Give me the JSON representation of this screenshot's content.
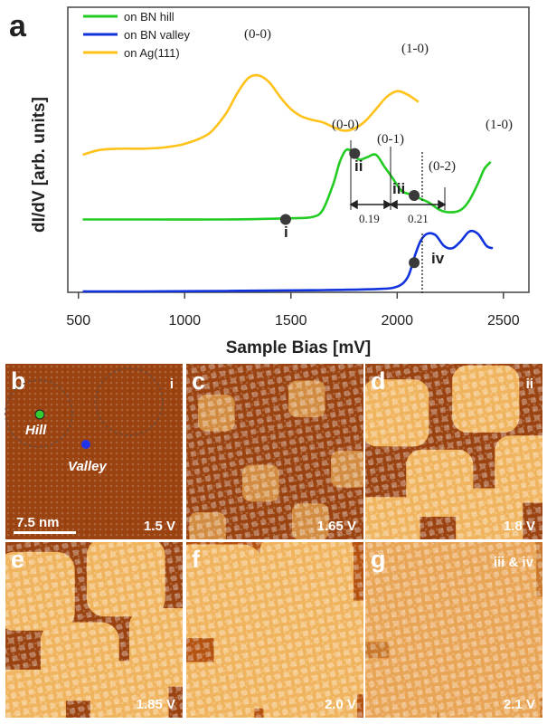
{
  "panel_a": {
    "letter": "a",
    "legend": [
      {
        "label": "on BN hill",
        "color": "#22cc22"
      },
      {
        "label": "on BN valley",
        "color": "#1133dd"
      },
      {
        "label": "on Ag(111)",
        "color": "#ffc21a"
      }
    ],
    "peak_labels": {
      "ag_00": "(0-0)",
      "ag_10": "(1-0)",
      "hill_00": "(0-0)",
      "hill_01": "(0-1)",
      "hill_02": "(0-2)",
      "hill_10": "(1-0)"
    },
    "point_labels": {
      "i": "i",
      "ii": "ii",
      "iii": "iii",
      "iv": "iv"
    },
    "spacings": {
      "s1": "0.19",
      "s2": "0.21"
    }
  },
  "chart_data": {
    "type": "line",
    "xlabel": "Sample Bias [mV]",
    "ylabel": "dI/dV [arb. units]",
    "xlim": [
      450,
      2620
    ],
    "ylim": [
      0,
      1
    ],
    "xticks": [
      500,
      1000,
      1500,
      2000,
      2500
    ],
    "yticks": [],
    "grid": false,
    "legend_position": "top-left",
    "series": [
      {
        "name": "on Ag(111)",
        "color": "#ffc21a",
        "x": [
          520,
          600,
          700,
          800,
          900,
          1000,
          1100,
          1150,
          1200,
          1250,
          1300,
          1350,
          1400,
          1450,
          1500,
          1550,
          1600,
          1650,
          1700,
          1750,
          1800,
          1850,
          1900,
          1950,
          2000,
          2050,
          2100
        ],
        "y": [
          0.57,
          0.59,
          0.595,
          0.595,
          0.6,
          0.615,
          0.65,
          0.69,
          0.75,
          0.83,
          0.89,
          0.9,
          0.87,
          0.81,
          0.76,
          0.73,
          0.715,
          0.705,
          0.685,
          0.67,
          0.68,
          0.71,
          0.76,
          0.81,
          0.835,
          0.82,
          0.79
        ]
      },
      {
        "name": "on BN hill",
        "color": "#22cc22",
        "x": [
          520,
          800,
          1200,
          1500,
          1600,
          1650,
          1700,
          1730,
          1760,
          1790,
          1820,
          1860,
          1900,
          1940,
          1980,
          2020,
          2060,
          2100,
          2150,
          2200,
          2250,
          2300,
          2340,
          2380,
          2410,
          2440
        ],
        "y": [
          0.3,
          0.3,
          0.3,
          0.305,
          0.31,
          0.34,
          0.45,
          0.54,
          0.59,
          0.58,
          0.55,
          0.56,
          0.57,
          0.52,
          0.47,
          0.42,
          0.405,
          0.39,
          0.37,
          0.34,
          0.33,
          0.34,
          0.38,
          0.45,
          0.51,
          0.54
        ]
      },
      {
        "name": "on BN valley",
        "color": "#1133dd",
        "x": [
          520,
          800,
          1200,
          1600,
          1900,
          2000,
          2050,
          2080,
          2110,
          2140,
          2180,
          2220,
          2260,
          2300,
          2340,
          2380,
          2420,
          2450
        ],
        "y": [
          0.0,
          0.0,
          0.002,
          0.005,
          0.01,
          0.02,
          0.06,
          0.14,
          0.21,
          0.24,
          0.235,
          0.19,
          0.18,
          0.21,
          0.25,
          0.24,
          0.19,
          0.18
        ]
      }
    ],
    "points": [
      {
        "label": "i",
        "series": "on BN hill",
        "x": 1475,
        "y": 0.3
      },
      {
        "label": "ii",
        "series": "on BN hill",
        "x": 1800,
        "y": 0.575
      },
      {
        "label": "iii",
        "series": "on BN hill",
        "x": 2080,
        "y": 0.4
      },
      {
        "label": "iv",
        "series": "on BN valley",
        "x": 2080,
        "y": 0.12
      }
    ]
  },
  "stm_panels": [
    {
      "letter": "b",
      "bias": "1.5 V",
      "tag": "i",
      "hill_label": "Hill",
      "valley_label": "Valley",
      "scalebar_label": "7.5 nm",
      "coverage": 0.0
    },
    {
      "letter": "c",
      "bias": "1.65 V",
      "tag": "",
      "coverage": 0.15
    },
    {
      "letter": "d",
      "bias": "1.8 V",
      "tag": "ii",
      "coverage": 0.55
    },
    {
      "letter": "e",
      "bias": "1.85 V",
      "tag": "",
      "coverage": 0.7
    },
    {
      "letter": "f",
      "bias": "2.0 V",
      "tag": "",
      "coverage": 0.9
    },
    {
      "letter": "g",
      "bias": "2.1 V",
      "tag": "iii & iv",
      "coverage": 1.0
    }
  ],
  "colors": {
    "stm_dark": "#7a2a08",
    "stm_mid": "#b5520f",
    "stm_bright": "#ffd27a",
    "hill_dot": "#33cc33",
    "valley_dot": "#2233ee"
  }
}
